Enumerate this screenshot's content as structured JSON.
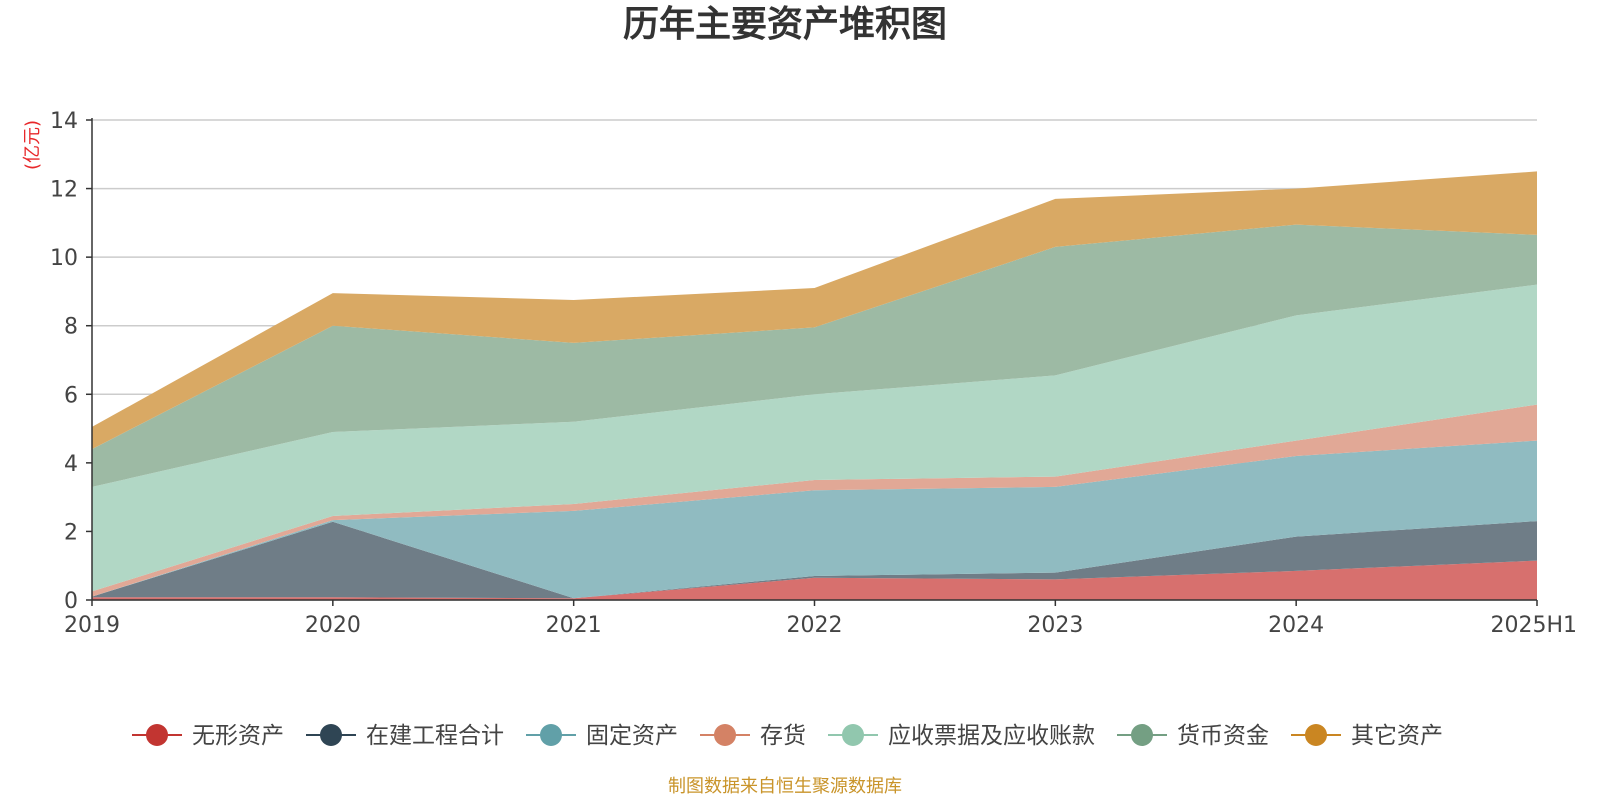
{
  "chart_data": {
    "type": "area",
    "stacked": true,
    "title": "历年主要资产堆积图",
    "unit_label": "(亿元)",
    "categories": [
      "2019",
      "2020",
      "2021",
      "2022",
      "2023",
      "2024",
      "2025H1"
    ],
    "ylim": [
      0,
      14
    ],
    "yticks": [
      "0",
      "2",
      "4",
      "6",
      "8",
      "10",
      "12",
      "14"
    ],
    "grid": true,
    "legend_position": "bottom",
    "series": [
      {
        "name": "无形资产",
        "color": "#c23531",
        "fill": "#d7706e",
        "values": [
          0.08,
          0.08,
          0.05,
          0.65,
          0.6,
          0.85,
          1.15
        ]
      },
      {
        "name": "在建工程合计",
        "color": "#2f4554",
        "fill": "#6f7d87",
        "values": [
          0.02,
          2.2,
          0.0,
          0.05,
          0.2,
          1.0,
          1.15
        ]
      },
      {
        "name": "固定资产",
        "color": "#61a0a8",
        "fill": "#90bbc1",
        "values": [
          0.0,
          0.05,
          2.55,
          2.5,
          2.5,
          2.35,
          2.35
        ]
      },
      {
        "name": "存货",
        "color": "#d48265",
        "fill": "#e1a896",
        "values": [
          0.15,
          0.12,
          0.2,
          0.3,
          0.3,
          0.45,
          1.05
        ]
      },
      {
        "name": "应收票据及应收账款",
        "color": "#91c7ae",
        "fill": "#b1d7c5",
        "values": [
          3.05,
          2.45,
          2.4,
          2.5,
          2.95,
          3.65,
          3.5
        ]
      },
      {
        "name": "货币资金",
        "color": "#749f83",
        "fill": "#9dbaa4",
        "values": [
          1.1,
          3.1,
          2.3,
          1.95,
          3.75,
          2.65,
          1.45
        ]
      },
      {
        "name": "其它资产",
        "color": "#ca8622",
        "fill": "#d9a964",
        "values": [
          0.65,
          0.95,
          1.25,
          1.15,
          1.4,
          1.05,
          1.85
        ]
      }
    ]
  },
  "footer": {
    "source": "制图数据来自恒生聚源数据库"
  }
}
